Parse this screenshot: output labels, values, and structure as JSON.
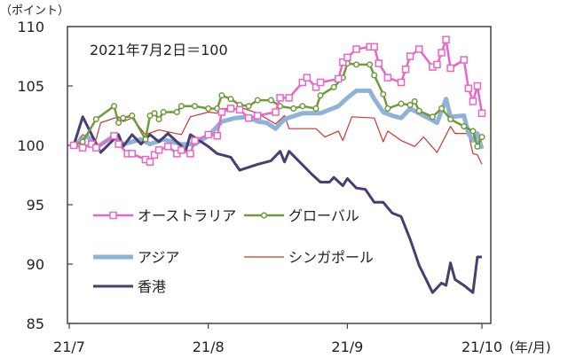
{
  "chart_data": {
    "type": "line",
    "unit_label": "（ポイント）",
    "annotation": "2021年7月2日＝100",
    "x_axis_unit": "(年/月)",
    "x_ticks": [
      {
        "label": "21/7",
        "date": "2021-07-01"
      },
      {
        "label": "21/8",
        "date": "2021-08-01"
      },
      {
        "label": "21/9",
        "date": "2021-09-01"
      },
      {
        "label": "21/10",
        "date": "2021-10-01"
      }
    ],
    "xlim": [
      "2021-07-01",
      "2021-10-01"
    ],
    "ylim": [
      85,
      110
    ],
    "y_ticks": [
      "85",
      "90",
      "95",
      "100",
      "105",
      "110"
    ],
    "grid": false,
    "legend_placement": "bottom-left inside plot",
    "series": [
      {
        "name": "オーストラリア",
        "color": "#e866c6",
        "marker": "square",
        "width": 2.5,
        "points": [
          [
            "2021-07-02",
            100
          ],
          [
            "2021-07-04",
            99.8
          ],
          [
            "2021-07-06",
            100.1
          ],
          [
            "2021-07-07",
            99.8
          ],
          [
            "2021-07-11",
            100.8
          ],
          [
            "2021-07-12",
            100.1
          ],
          [
            "2021-07-14",
            99.3
          ],
          [
            "2021-07-15",
            99.3
          ],
          [
            "2021-07-18",
            98.8
          ],
          [
            "2021-07-19",
            98.6
          ],
          [
            "2021-07-20",
            99.2
          ],
          [
            "2021-07-21",
            99.6
          ],
          [
            "2021-07-23",
            99.9
          ],
          [
            "2021-07-25",
            99.3
          ],
          [
            "2021-07-26",
            99.6
          ],
          [
            "2021-07-28",
            99.3
          ],
          [
            "2021-07-29",
            100.4
          ],
          [
            "2021-08-01",
            100.9
          ],
          [
            "2021-08-03",
            100.8
          ],
          [
            "2021-08-04",
            102.8
          ],
          [
            "2021-08-06",
            103.1
          ],
          [
            "2021-08-08",
            103.0
          ],
          [
            "2021-08-10",
            102.3
          ],
          [
            "2021-08-12",
            102.5
          ],
          [
            "2021-08-16",
            102.8
          ],
          [
            "2021-08-17",
            104.0
          ],
          [
            "2021-08-19",
            104.0
          ],
          [
            "2021-08-22",
            105.3
          ],
          [
            "2021-08-23",
            105.7
          ],
          [
            "2021-08-25",
            104.9
          ],
          [
            "2021-08-26",
            105.3
          ],
          [
            "2021-08-30",
            105.6
          ],
          [
            "2021-08-31",
            107.0
          ],
          [
            "2021-09-01",
            107.4
          ],
          [
            "2021-09-03",
            108.1
          ],
          [
            "2021-09-06",
            108.3
          ],
          [
            "2021-09-07",
            108.3
          ],
          [
            "2021-09-08",
            106.9
          ],
          [
            "2021-09-10",
            105.7
          ],
          [
            "2021-09-13",
            105.3
          ],
          [
            "2021-09-14",
            106.4
          ],
          [
            "2021-09-15",
            107.5
          ],
          [
            "2021-09-17",
            108.1
          ],
          [
            "2021-09-20",
            106.6
          ],
          [
            "2021-09-21",
            106.8
          ],
          [
            "2021-09-22",
            107.8
          ],
          [
            "2021-09-23",
            108.9
          ],
          [
            "2021-09-24",
            106.5
          ],
          [
            "2021-09-27",
            107.2
          ],
          [
            "2021-09-28",
            104.8
          ],
          [
            "2021-09-29",
            103.7
          ],
          [
            "2021-09-30",
            105.0
          ],
          [
            "2021-10-01",
            102.7
          ]
        ]
      },
      {
        "name": "グローバル",
        "color": "#6e9a3c",
        "marker": "circle",
        "width": 2.5,
        "points": [
          [
            "2021-07-02",
            100
          ],
          [
            "2021-07-04",
            100.3
          ],
          [
            "2021-07-07",
            102.2
          ],
          [
            "2021-07-11",
            103.3
          ],
          [
            "2021-07-12",
            101.9
          ],
          [
            "2021-07-13",
            102.3
          ],
          [
            "2021-07-15",
            102.5
          ],
          [
            "2021-07-18",
            100.5
          ],
          [
            "2021-07-19",
            102.5
          ],
          [
            "2021-07-20",
            102.7
          ],
          [
            "2021-07-21",
            102.2
          ],
          [
            "2021-07-22",
            102.8
          ],
          [
            "2021-07-25",
            102.8
          ],
          [
            "2021-07-26",
            103.3
          ],
          [
            "2021-07-29",
            103.3
          ],
          [
            "2021-08-01",
            103.1
          ],
          [
            "2021-08-03",
            103.1
          ],
          [
            "2021-08-04",
            104.2
          ],
          [
            "2021-08-06",
            103.9
          ],
          [
            "2021-08-08",
            103.4
          ],
          [
            "2021-08-10",
            103.3
          ],
          [
            "2021-08-12",
            103.8
          ],
          [
            "2021-08-15",
            103.8
          ],
          [
            "2021-08-17",
            103.3
          ],
          [
            "2021-08-20",
            103.1
          ],
          [
            "2021-08-22",
            103.3
          ],
          [
            "2021-08-25",
            103.1
          ],
          [
            "2021-08-26",
            104.2
          ],
          [
            "2021-08-29",
            104.9
          ],
          [
            "2021-08-31",
            105.7
          ],
          [
            "2021-09-01",
            106.9
          ],
          [
            "2021-09-03",
            106.8
          ],
          [
            "2021-09-06",
            106.8
          ],
          [
            "2021-09-07",
            105.9
          ],
          [
            "2021-09-09",
            104.3
          ],
          [
            "2021-09-10",
            103.1
          ],
          [
            "2021-09-13",
            103.5
          ],
          [
            "2021-09-15",
            103.4
          ],
          [
            "2021-09-16",
            103.7
          ],
          [
            "2021-09-17",
            102.9
          ],
          [
            "2021-09-20",
            102.4
          ],
          [
            "2021-09-22",
            103.1
          ],
          [
            "2021-09-24",
            102.2
          ],
          [
            "2021-09-27",
            101.6
          ],
          [
            "2021-09-29",
            101.2
          ],
          [
            "2021-09-30",
            99.9
          ],
          [
            "2021-10-01",
            100.7
          ]
        ]
      },
      {
        "name": "アジア",
        "color": "#8fb2d9",
        "marker": "none",
        "width": 5,
        "points": [
          [
            "2021-07-02",
            100
          ],
          [
            "2021-07-05",
            100.8
          ],
          [
            "2021-07-07",
            99.8
          ],
          [
            "2021-07-11",
            100.8
          ],
          [
            "2021-07-13",
            100.1
          ],
          [
            "2021-07-17",
            100.5
          ],
          [
            "2021-07-19",
            100.1
          ],
          [
            "2021-07-22",
            100.5
          ],
          [
            "2021-07-26",
            100.1
          ],
          [
            "2021-07-29",
            100.1
          ],
          [
            "2021-08-01",
            100.8
          ],
          [
            "2021-08-04",
            102.0
          ],
          [
            "2021-08-07",
            102.3
          ],
          [
            "2021-08-10",
            102.4
          ],
          [
            "2021-08-12",
            102.0
          ],
          [
            "2021-08-14",
            101.9
          ],
          [
            "2021-08-16",
            101.4
          ],
          [
            "2021-08-18",
            102.2
          ],
          [
            "2021-08-22",
            102.7
          ],
          [
            "2021-08-26",
            102.7
          ],
          [
            "2021-08-30",
            103.3
          ],
          [
            "2021-09-01",
            104.0
          ],
          [
            "2021-09-03",
            104.6
          ],
          [
            "2021-09-06",
            104.6
          ],
          [
            "2021-09-07",
            103.9
          ],
          [
            "2021-09-09",
            102.8
          ],
          [
            "2021-09-11",
            102.5
          ],
          [
            "2021-09-13",
            102.3
          ],
          [
            "2021-09-15",
            103.1
          ],
          [
            "2021-09-18",
            102.5
          ],
          [
            "2021-09-21",
            101.9
          ],
          [
            "2021-09-23",
            103.9
          ],
          [
            "2021-09-24",
            102.4
          ],
          [
            "2021-09-27",
            102.5
          ],
          [
            "2021-09-28",
            101.0
          ],
          [
            "2021-09-29",
            100.4
          ],
          [
            "2021-09-30",
            101.0
          ],
          [
            "2021-10-01",
            99.7
          ]
        ]
      },
      {
        "name": "シンガポール",
        "color": "#c8382e",
        "marker": "none",
        "width": 1.2,
        "points": [
          [
            "2021-07-02",
            100
          ],
          [
            "2021-07-04",
            100.9
          ],
          [
            "2021-07-07",
            100.5
          ],
          [
            "2021-07-08",
            101.9
          ],
          [
            "2021-07-12",
            102.4
          ],
          [
            "2021-07-13",
            102.0
          ],
          [
            "2021-07-15",
            102.3
          ],
          [
            "2021-07-18",
            100.9
          ],
          [
            "2021-07-21",
            101.3
          ],
          [
            "2021-07-26",
            100.9
          ],
          [
            "2021-07-28",
            102.4
          ],
          [
            "2021-08-01",
            102.8
          ],
          [
            "2021-08-03",
            102.7
          ],
          [
            "2021-08-04",
            103.1
          ],
          [
            "2021-08-09",
            103.1
          ],
          [
            "2021-08-12",
            102.7
          ],
          [
            "2021-08-16",
            101.8
          ],
          [
            "2021-08-18",
            102.5
          ],
          [
            "2021-08-19",
            101.4
          ],
          [
            "2021-08-25",
            101.4
          ],
          [
            "2021-08-27",
            100.7
          ],
          [
            "2021-08-30",
            101.2
          ],
          [
            "2021-08-31",
            100.4
          ],
          [
            "2021-09-02",
            102.4
          ],
          [
            "2021-09-07",
            102.3
          ],
          [
            "2021-09-09",
            100.3
          ],
          [
            "2021-09-10",
            101.2
          ],
          [
            "2021-09-13",
            100.4
          ],
          [
            "2021-09-16",
            99.9
          ],
          [
            "2021-09-18",
            100.7
          ],
          [
            "2021-09-21",
            99.4
          ],
          [
            "2021-09-24",
            101.6
          ],
          [
            "2021-09-25",
            101.0
          ],
          [
            "2021-09-28",
            101.0
          ],
          [
            "2021-09-29",
            99.3
          ],
          [
            "2021-09-30",
            99.2
          ],
          [
            "2021-10-01",
            98.4
          ]
        ]
      },
      {
        "name": "香港",
        "color": "#4a3d70",
        "marker": "none",
        "width": 3,
        "points": [
          [
            "2021-07-02",
            100
          ],
          [
            "2021-07-04",
            102.4
          ],
          [
            "2021-07-08",
            99.4
          ],
          [
            "2021-07-12",
            100.9
          ],
          [
            "2021-07-13",
            99.9
          ],
          [
            "2021-07-15",
            100.9
          ],
          [
            "2021-07-17",
            100.1
          ],
          [
            "2021-07-19",
            100.9
          ],
          [
            "2021-07-21",
            100.3
          ],
          [
            "2021-07-23",
            101.0
          ],
          [
            "2021-07-25",
            100.3
          ],
          [
            "2021-07-27",
            99.6
          ],
          [
            "2021-07-28",
            100.9
          ],
          [
            "2021-08-01",
            99.9
          ],
          [
            "2021-08-03",
            99.3
          ],
          [
            "2021-08-06",
            99.0
          ],
          [
            "2021-08-08",
            97.9
          ],
          [
            "2021-08-12",
            98.4
          ],
          [
            "2021-08-15",
            98.7
          ],
          [
            "2021-08-17",
            99.5
          ],
          [
            "2021-08-18",
            98.6
          ],
          [
            "2021-08-19",
            99.5
          ],
          [
            "2021-08-24",
            97.6
          ],
          [
            "2021-08-26",
            96.9
          ],
          [
            "2021-08-28",
            96.9
          ],
          [
            "2021-08-29",
            97.3
          ],
          [
            "2021-08-31",
            96.6
          ],
          [
            "2021-09-01",
            97.2
          ],
          [
            "2021-09-03",
            96.4
          ],
          [
            "2021-09-05",
            96.3
          ],
          [
            "2021-09-07",
            95.2
          ],
          [
            "2021-09-09",
            95.2
          ],
          [
            "2021-09-11",
            94.3
          ],
          [
            "2021-09-13",
            94.0
          ],
          [
            "2021-09-15",
            92.1
          ],
          [
            "2021-09-17",
            89.9
          ],
          [
            "2021-09-20",
            87.6
          ],
          [
            "2021-09-22",
            88.4
          ],
          [
            "2021-09-23",
            88.2
          ],
          [
            "2021-09-24",
            90.1
          ],
          [
            "2021-09-25",
            88.7
          ],
          [
            "2021-09-27",
            88.2
          ],
          [
            "2021-09-29",
            87.6
          ],
          [
            "2021-09-30",
            90.6
          ],
          [
            "2021-10-01",
            90.6
          ]
        ]
      }
    ]
  }
}
